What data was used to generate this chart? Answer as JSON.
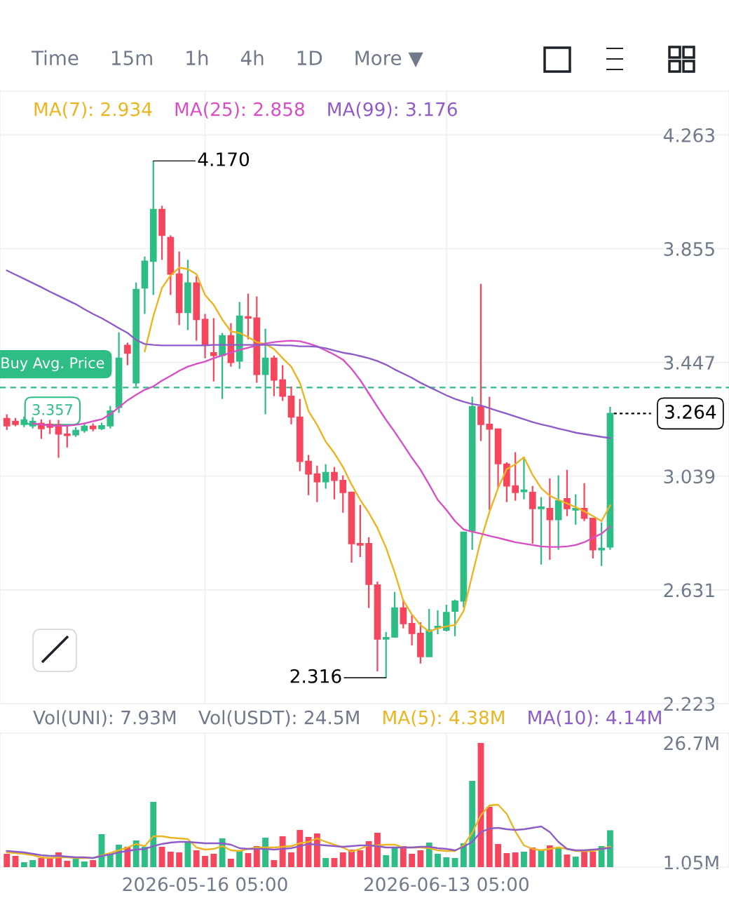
{
  "chart_data": [
    {
      "type": "candlestick",
      "x": [
        "2026-04-23T05:00",
        "2026-04-24T05:00",
        "2026-04-25T05:00",
        "2026-04-26T05:00",
        "2026-04-27T05:00",
        "2026-04-28T05:00",
        "2026-04-29T05:00",
        "2026-04-30T05:00",
        "2026-05-01T05:00",
        "2026-05-02T05:00",
        "2026-05-03T05:00",
        "2026-05-04T05:00",
        "2026-05-05T05:00",
        "2026-05-06T05:00",
        "2026-05-07T05:00",
        "2026-05-08T05:00",
        "2026-05-09T05:00",
        "2026-05-10T05:00",
        "2026-05-11T05:00",
        "2026-05-12T05:00",
        "2026-05-13T05:00",
        "2026-05-14T05:00",
        "2026-05-15T05:00",
        "2026-05-16T05:00",
        "2026-05-17T05:00",
        "2026-05-18T05:00",
        "2026-05-19T05:00",
        "2026-05-20T05:00",
        "2026-05-21T05:00",
        "2026-05-22T05:00",
        "2026-05-23T05:00",
        "2026-05-24T05:00",
        "2026-05-25T05:00",
        "2026-05-26T05:00",
        "2026-05-27T05:00",
        "2026-05-28T05:00",
        "2026-05-29T05:00",
        "2026-05-30T05:00",
        "2026-05-31T05:00",
        "2026-06-01T05:00",
        "2026-06-02T05:00",
        "2026-06-03T05:00",
        "2026-06-04T05:00",
        "2026-06-05T05:00",
        "2026-06-06T05:00",
        "2026-06-07T05:00",
        "2026-06-08T05:00",
        "2026-06-09T05:00",
        "2026-06-10T05:00",
        "2026-06-11T05:00",
        "2026-06-12T05:00",
        "2026-06-13T05:00",
        "2026-06-14T05:00",
        "2026-06-15T05:00",
        "2026-06-16T05:00",
        "2026-06-17T05:00",
        "2026-06-18T05:00",
        "2026-06-19T05:00",
        "2026-06-20T05:00",
        "2026-06-21T05:00",
        "2026-06-22T05:00",
        "2026-06-23T05:00",
        "2026-06-24T05:00",
        "2026-06-25T05:00",
        "2026-06-26T05:00",
        "2026-06-27T05:00",
        "2026-06-28T05:00",
        "2026-06-29T05:00",
        "2026-06-30T05:00",
        "2026-07-01T05:00",
        "2026-07-02T05:00"
      ],
      "ohlc": [
        [
          3.246,
          3.261,
          3.205,
          3.22
        ],
        [
          3.236,
          3.248,
          3.218,
          3.225
        ],
        [
          3.225,
          3.253,
          3.215,
          3.241
        ],
        [
          3.22,
          3.251,
          3.21,
          3.236
        ],
        [
          3.228,
          3.243,
          3.173,
          3.21
        ],
        [
          3.225,
          3.241,
          3.19,
          3.215
        ],
        [
          3.223,
          3.241,
          3.105,
          3.19
        ],
        [
          3.19,
          3.218,
          3.142,
          3.185
        ],
        [
          3.188,
          3.215,
          3.18,
          3.203
        ],
        [
          3.203,
          3.231,
          3.195,
          3.218
        ],
        [
          3.218,
          3.228,
          3.2,
          3.21
        ],
        [
          3.21,
          3.231,
          3.205,
          3.22
        ],
        [
          3.22,
          3.291,
          3.21,
          3.273
        ],
        [
          3.286,
          3.555,
          3.266,
          3.462
        ],
        [
          3.508,
          3.518,
          3.437,
          3.48
        ],
        [
          3.374,
          3.734,
          3.361,
          3.709
        ],
        [
          3.714,
          3.827,
          3.621,
          3.81
        ],
        [
          3.81,
          4.17,
          3.689,
          3.996
        ],
        [
          3.996,
          4.009,
          3.815,
          3.903
        ],
        [
          3.895,
          3.903,
          3.689,
          3.764
        ],
        [
          3.764,
          3.845,
          3.581,
          3.626
        ],
        [
          3.626,
          3.815,
          3.563,
          3.732
        ],
        [
          3.732,
          3.757,
          3.525,
          3.601
        ],
        [
          3.601,
          3.621,
          3.462,
          3.51
        ],
        [
          3.482,
          3.606,
          3.379,
          3.472
        ],
        [
          3.472,
          3.553,
          3.316,
          3.543
        ],
        [
          3.543,
          3.588,
          3.432,
          3.447
        ],
        [
          3.452,
          3.664,
          3.424,
          3.613
        ],
        [
          3.611,
          3.694,
          3.53,
          3.606
        ],
        [
          3.606,
          3.684,
          3.374,
          3.404
        ],
        [
          3.404,
          3.568,
          3.261,
          3.462
        ],
        [
          3.462,
          3.472,
          3.326,
          3.384
        ],
        [
          3.384,
          3.437,
          3.309,
          3.326
        ],
        [
          3.326,
          3.361,
          3.225,
          3.251
        ],
        [
          3.251,
          3.316,
          3.057,
          3.092
        ],
        [
          3.092,
          3.115,
          2.971,
          3.047
        ],
        [
          3.047,
          3.077,
          2.946,
          3.019
        ],
        [
          3.019,
          3.082,
          2.994,
          3.052
        ],
        [
          3.052,
          3.072,
          2.956,
          3.024
        ],
        [
          3.024,
          3.042,
          2.908,
          2.981
        ],
        [
          2.981,
          2.984,
          2.729,
          2.797
        ],
        [
          2.797,
          2.936,
          2.749,
          2.792
        ],
        [
          2.797,
          2.82,
          2.566,
          2.651
        ],
        [
          2.649,
          2.661,
          2.339,
          2.455
        ],
        [
          2.455,
          2.48,
          2.316,
          2.46
        ],
        [
          2.462,
          2.624,
          2.46,
          2.566
        ],
        [
          2.566,
          2.596,
          2.493,
          2.51
        ],
        [
          2.51,
          2.54,
          2.432,
          2.475
        ],
        [
          2.475,
          2.515,
          2.367,
          2.392
        ],
        [
          2.392,
          2.563,
          2.392,
          2.487
        ],
        [
          2.495,
          2.558,
          2.472,
          2.5
        ],
        [
          2.487,
          2.578,
          2.482,
          2.55
        ],
        [
          2.555,
          2.596,
          2.465,
          2.591
        ],
        [
          2.591,
          2.838,
          2.568,
          2.838
        ],
        [
          2.843,
          3.324,
          2.775,
          3.288
        ],
        [
          3.288,
          3.729,
          3.165,
          3.225
        ],
        [
          3.225,
          3.324,
          2.918,
          3.208
        ],
        [
          3.208,
          3.208,
          2.996,
          3.084
        ],
        [
          3.082,
          3.089,
          2.946,
          3.004
        ],
        [
          3.004,
          3.125,
          2.951,
          2.981
        ],
        [
          2.984,
          3.107,
          2.956,
          2.989
        ],
        [
          2.981,
          3.004,
          2.797,
          2.923
        ],
        [
          2.923,
          2.964,
          2.722,
          2.928
        ],
        [
          2.923,
          3.031,
          2.739,
          2.883
        ],
        [
          2.883,
          3.042,
          2.775,
          2.951
        ],
        [
          2.958,
          3.062,
          2.896,
          2.923
        ],
        [
          2.918,
          2.974,
          2.865,
          2.923
        ],
        [
          2.923,
          3.014,
          2.878,
          2.888
        ],
        [
          2.888,
          2.888,
          2.744,
          2.775
        ],
        [
          2.775,
          2.873,
          2.717,
          2.78
        ],
        [
          2.785,
          3.288,
          2.775,
          3.264
        ]
      ],
      "colors": [
        "#f6465d",
        "#f6465d",
        "#2ebd85",
        "#2ebd85",
        "#f6465d",
        "#f6465d",
        "#f6465d",
        "#f6465d",
        "#2ebd85",
        "#2ebd85",
        "#f6465d",
        "#2ebd85",
        "#2ebd85",
        "#2ebd85",
        "#f6465d",
        "#2ebd85",
        "#2ebd85",
        "#2ebd85",
        "#f6465d",
        "#f6465d",
        "#f6465d",
        "#2ebd85",
        "#f6465d",
        "#f6465d",
        "#f6465d",
        "#2ebd85",
        "#f6465d",
        "#2ebd85",
        "#f6465d",
        "#f6465d",
        "#2ebd85",
        "#f6465d",
        "#f6465d",
        "#f6465d",
        "#f6465d",
        "#f6465d",
        "#f6465d",
        "#2ebd85",
        "#f6465d",
        "#f6465d",
        "#f6465d",
        "#f6465d",
        "#f6465d",
        "#f6465d",
        "#2ebd85",
        "#2ebd85",
        "#f6465d",
        "#f6465d",
        "#f6465d",
        "#2ebd85",
        "#2ebd85",
        "#2ebd85",
        "#2ebd85",
        "#2ebd85",
        "#2ebd85",
        "#f6465d",
        "#f6465d",
        "#f6465d",
        "#f6465d",
        "#f6465d",
        "#2ebd85",
        "#f6465d",
        "#2ebd85",
        "#f6465d",
        "#2ebd85",
        "#f6465d",
        "#2ebd85",
        "#f6465d",
        "#f6465d",
        "#2ebd85",
        "#2ebd85"
      ],
      "series": [
        {
          "name": "MA(7): 2.934",
          "type": "line",
          "color": "#ebb521",
          "values": [
            null,
            null,
            null,
            null,
            null,
            null,
            null,
            null,
            null,
            null,
            null,
            null,
            null,
            null,
            null,
            null,
            3.487,
            3.613,
            3.714,
            3.759,
            3.787,
            3.782,
            3.764,
            3.689,
            3.654,
            3.601,
            3.558,
            3.553,
            3.538,
            3.52,
            3.513,
            3.495,
            3.462,
            3.432,
            3.374,
            3.273,
            3.223,
            3.163,
            3.122,
            3.072,
            3.009,
            2.954,
            2.908,
            2.853,
            2.782,
            2.694,
            2.593,
            2.543,
            2.505,
            2.482,
            2.493,
            2.5,
            2.505,
            2.555,
            2.684,
            2.81,
            2.911,
            2.996,
            3.064,
            3.082,
            3.107,
            3.044,
            2.996,
            2.969,
            2.954,
            2.941,
            2.928,
            2.913,
            2.896,
            2.878,
            2.934
          ]
        },
        {
          "name": "MA(25): 2.858",
          "type": "line",
          "color": "#d84fc3",
          "values": [
            null,
            null,
            null,
            3.228,
            3.225,
            3.22,
            3.22,
            3.22,
            3.223,
            3.228,
            3.236,
            3.243,
            3.261,
            3.286,
            3.311,
            3.331,
            3.349,
            3.361,
            3.382,
            3.399,
            3.417,
            3.432,
            3.442,
            3.45,
            3.462,
            3.472,
            3.482,
            3.492,
            3.5,
            3.508,
            3.515,
            3.52,
            3.523,
            3.525,
            3.523,
            3.515,
            3.505,
            3.49,
            3.475,
            3.457,
            3.424,
            3.384,
            3.336,
            3.288,
            3.241,
            3.198,
            3.152,
            3.105,
            3.062,
            3.009,
            2.954,
            2.918,
            2.878,
            2.848,
            2.84,
            2.833,
            2.825,
            2.818,
            2.81,
            2.802,
            2.797,
            2.792,
            2.787,
            2.785,
            2.785,
            2.787,
            2.792,
            2.802,
            2.818,
            2.833,
            2.858
          ]
        },
        {
          "name": "MA(99): 3.176",
          "type": "line",
          "color": "#8e5cc7",
          "values": [
            3.777,
            3.762,
            3.747,
            3.732,
            3.717,
            3.701,
            3.686,
            3.671,
            3.656,
            3.638,
            3.621,
            3.606,
            3.588,
            3.57,
            3.553,
            3.528,
            3.513,
            3.51,
            3.508,
            3.508,
            3.508,
            3.508,
            3.508,
            3.508,
            3.51,
            3.51,
            3.51,
            3.51,
            3.51,
            3.51,
            3.51,
            3.51,
            3.508,
            3.508,
            3.505,
            3.505,
            3.503,
            3.498,
            3.49,
            3.482,
            3.477,
            3.47,
            3.462,
            3.452,
            3.439,
            3.422,
            3.407,
            3.392,
            3.374,
            3.359,
            3.344,
            3.329,
            3.316,
            3.306,
            3.298,
            3.293,
            3.283,
            3.273,
            3.263,
            3.253,
            3.243,
            3.233,
            3.225,
            3.218,
            3.21,
            3.203,
            3.195,
            3.19,
            3.185,
            3.18,
            3.176
          ]
        }
      ],
      "xlim": [
        "2026-04-22T10:00",
        "2026-07-16T00:00"
      ],
      "xticks": [
        {
          "value": "2026-05-16T05:00",
          "label": null
        },
        {
          "value": "2026-06-13T05:00",
          "label": null
        }
      ],
      "ylim": [
        2.223,
        4.42
      ],
      "yticks": [
        4.263,
        3.855,
        3.447,
        3.039,
        2.631,
        2.223
      ],
      "tick_labels": "y",
      "grid": true,
      "ref_lines": [
        {
          "axis": "y",
          "value": 3.357,
          "label": "Buy Avg. Price\n3.357",
          "color": "#2ebd85",
          "line_style": "dashed"
        },
        {
          "axis": "y",
          "value": 3.264,
          "label": "3.264",
          "color": "#000000",
          "line_style": "dotted"
        }
      ],
      "annotations": [
        {
          "text": "4.170",
          "x": "2026-05-10T05:00",
          "y": 4.17
        },
        {
          "text": "2.316",
          "x": "2026-06-06T05:00",
          "y": 2.316
        },
        "Time",
        "15m",
        "1h",
        "4h",
        "1D",
        "More ▼"
      ]
    },
    {
      "type": "bar",
      "x": [
        "2026-04-23T05:00",
        "2026-04-24T05:00",
        "2026-04-25T05:00",
        "2026-04-26T05:00",
        "2026-04-27T05:00",
        "2026-04-28T05:00",
        "2026-04-29T05:00",
        "2026-04-30T05:00",
        "2026-05-01T05:00",
        "2026-05-02T05:00",
        "2026-05-03T05:00",
        "2026-05-04T05:00",
        "2026-05-05T05:00",
        "2026-05-06T05:00",
        "2026-05-07T05:00",
        "2026-05-08T05:00",
        "2026-05-09T05:00",
        "2026-05-10T05:00",
        "2026-05-11T05:00",
        "2026-05-12T05:00",
        "2026-05-13T05:00",
        "2026-05-14T05:00",
        "2026-05-15T05:00",
        "2026-05-16T05:00",
        "2026-05-17T05:00",
        "2026-05-18T05:00",
        "2026-05-19T05:00",
        "2026-05-20T05:00",
        "2026-05-21T05:00",
        "2026-05-22T05:00",
        "2026-05-23T05:00",
        "2026-05-24T05:00",
        "2026-05-25T05:00",
        "2026-05-26T05:00",
        "2026-05-27T05:00",
        "2026-05-28T05:00",
        "2026-05-29T05:00",
        "2026-05-30T05:00",
        "2026-05-31T05:00",
        "2026-06-01T05:00",
        "2026-06-02T05:00",
        "2026-06-03T05:00",
        "2026-06-04T05:00",
        "2026-06-05T05:00",
        "2026-06-06T05:00",
        "2026-06-07T05:00",
        "2026-06-08T05:00",
        "2026-06-09T05:00",
        "2026-06-10T05:00",
        "2026-06-11T05:00",
        "2026-06-12T05:00",
        "2026-06-13T05:00",
        "2026-06-14T05:00",
        "2026-06-15T05:00",
        "2026-06-16T05:00",
        "2026-06-17T05:00",
        "2026-06-18T05:00",
        "2026-06-19T05:00",
        "2026-06-20T05:00",
        "2026-06-21T05:00",
        "2026-06-22T05:00",
        "2026-06-23T05:00",
        "2026-06-24T05:00",
        "2026-06-25T05:00",
        "2026-06-26T05:00",
        "2026-06-27T05:00",
        "2026-06-28T05:00",
        "2026-06-29T05:00",
        "2026-06-30T05:00",
        "2026-07-01T05:00",
        "2026-07-02T05:00"
      ],
      "series": [
        {
          "values": [
            2.87,
            2.41,
            1.05,
            1.51,
            1.96,
            1.96,
            3.17,
            1.36,
            1.96,
            1.21,
            1.51,
            7.09,
            2.71,
            4.83,
            4.37,
            5.73,
            4.37,
            14.02,
            4.37,
            3.32,
            3.17,
            5.43,
            3.62,
            2.41,
            2.87,
            6.18,
            1.81,
            3.47,
            3.02,
            4.52,
            6.33,
            1.51,
            6.64,
            3.17,
            7.99,
            6.48,
            7.24,
            1.96,
            1.96,
            3.17,
            3.77,
            3.62,
            5.58,
            7.39,
            2.56,
            4.22,
            4.52,
            2.87,
            3.62,
            5.28,
            2.87,
            2.11,
            1.96,
            5.13,
            18.55,
            26.7,
            12.97,
            4.98,
            3.02,
            3.17,
            3.32,
            4.22,
            3.77,
            4.67,
            4.22,
            2.71,
            2.26,
            3.47,
            3.32,
            4.52,
            7.93
          ],
          "colors": [
            "#f6465d",
            "#f6465d",
            "#2ebd85",
            "#2ebd85",
            "#f6465d",
            "#f6465d",
            "#f6465d",
            "#f6465d",
            "#2ebd85",
            "#2ebd85",
            "#f6465d",
            "#2ebd85",
            "#2ebd85",
            "#2ebd85",
            "#f6465d",
            "#2ebd85",
            "#2ebd85",
            "#2ebd85",
            "#f6465d",
            "#f6465d",
            "#f6465d",
            "#2ebd85",
            "#f6465d",
            "#f6465d",
            "#f6465d",
            "#2ebd85",
            "#f6465d",
            "#2ebd85",
            "#f6465d",
            "#f6465d",
            "#2ebd85",
            "#f6465d",
            "#f6465d",
            "#f6465d",
            "#f6465d",
            "#f6465d",
            "#f6465d",
            "#2ebd85",
            "#f6465d",
            "#f6465d",
            "#f6465d",
            "#f6465d",
            "#f6465d",
            "#f6465d",
            "#2ebd85",
            "#2ebd85",
            "#f6465d",
            "#f6465d",
            "#f6465d",
            "#2ebd85",
            "#2ebd85",
            "#2ebd85",
            "#2ebd85",
            "#2ebd85",
            "#2ebd85",
            "#f6465d",
            "#f6465d",
            "#f6465d",
            "#f6465d",
            "#f6465d",
            "#2ebd85",
            "#f6465d",
            "#2ebd85",
            "#f6465d",
            "#2ebd85",
            "#f6465d",
            "#2ebd85",
            "#f6465d",
            "#f6465d",
            "#2ebd85",
            "#2ebd85"
          ]
        },
        {
          "name": "MA(5): 4.38M",
          "type": "line",
          "color": "#ebb521",
          "values": [
            3.17,
            3.02,
            2.87,
            2.56,
            2.11,
            1.96,
            2.11,
            2.11,
            1.96,
            1.96,
            1.96,
            2.56,
            3.02,
            3.62,
            4.22,
            4.98,
            4.52,
            6.64,
            6.64,
            6.33,
            6.18,
            6.03,
            4.22,
            3.77,
            3.92,
            4.52,
            3.62,
            3.47,
            3.92,
            4.22,
            4.22,
            4.22,
            4.37,
            4.52,
            5.13,
            5.43,
            6.18,
            5.43,
            4.83,
            4.22,
            3.32,
            3.92,
            4.67,
            4.67,
            4.83,
            4.83,
            4.22,
            4.22,
            4.22,
            4.07,
            3.62,
            3.47,
            3.47,
            4.67,
            7.39,
            11.16,
            13.27,
            13.42,
            11.46,
            7.69,
            4.67,
            3.92,
            3.62,
            3.92,
            4.22,
            3.92,
            3.47,
            3.47,
            3.47,
            3.92,
            4.38
          ]
        },
        {
          "name": "MA(10): 4.14M",
          "type": "line",
          "color": "#8e5cc7",
          "values": [
            3.47,
            3.32,
            3.17,
            2.87,
            2.56,
            2.41,
            2.41,
            2.26,
            2.11,
            2.11,
            1.96,
            2.41,
            2.71,
            3.17,
            3.47,
            3.77,
            3.92,
            4.52,
            4.98,
            5.28,
            5.43,
            5.43,
            5.28,
            5.13,
            5.13,
            5.13,
            4.83,
            4.07,
            3.92,
            3.92,
            3.92,
            3.77,
            3.92,
            4.07,
            4.52,
            4.98,
            4.83,
            4.67,
            4.52,
            4.37,
            4.52,
            4.67,
            4.67,
            4.52,
            4.22,
            4.22,
            4.22,
            4.22,
            4.37,
            4.37,
            4.07,
            3.92,
            3.62,
            4.37,
            5.43,
            7.54,
            8.29,
            8.44,
            8.14,
            7.99,
            8.14,
            8.44,
            8.75,
            7.54,
            5.43,
            3.92,
            3.62,
            3.62,
            3.77,
            3.92,
            4.14
          ]
        }
      ],
      "xlim": [
        "2026-04-22T10:00",
        "2026-07-16T00:00"
      ],
      "xticks": [
        {
          "value": "2026-05-16T05:00",
          "label": "2026-05-16 05:00"
        },
        {
          "value": "2026-06-13T05:00",
          "label": "2026-06-13 05:00"
        }
      ],
      "ylim": [
        0,
        28.8
      ],
      "yticks": [
        {
          "value": 1.05,
          "label": "1.05M"
        },
        {
          "value": 26.7,
          "label": "26.7M"
        }
      ],
      "grid": "x",
      "annotations": [
        "Vol(UNI): 7.93M",
        "Vol(USDT): 24.5M"
      ]
    }
  ]
}
